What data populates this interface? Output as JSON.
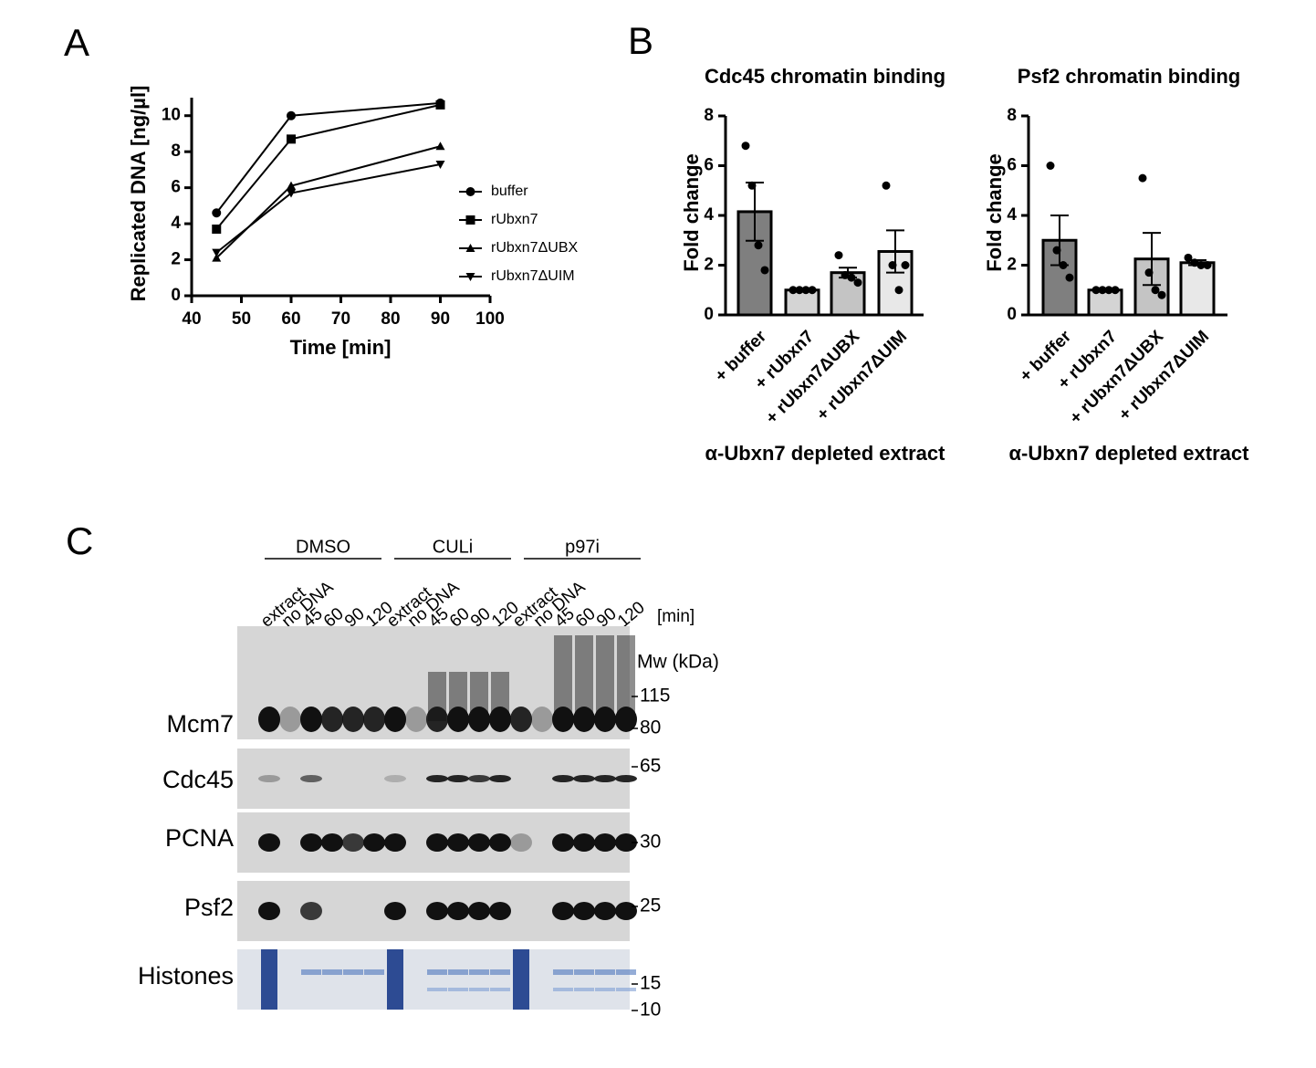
{
  "panel_labels": [
    "A",
    "B",
    "C"
  ],
  "chart_data": [
    {
      "type": "line",
      "ylabel": "Replicated DNA [ng/µl]",
      "xlabel": "Time [min]",
      "x": [
        45,
        60,
        90
      ],
      "xlim": [
        40,
        100
      ],
      "xticks": [
        40,
        50,
        60,
        70,
        80,
        90,
        100
      ],
      "ylim": [
        0,
        11
      ],
      "yticks": [
        0,
        2,
        4,
        6,
        8,
        10
      ],
      "series": [
        {
          "name": "buffer",
          "color": "#000000",
          "marker": "circle",
          "values": [
            4.6,
            10.0,
            10.7
          ]
        },
        {
          "name": "rUbxn7",
          "color": "#000000",
          "marker": "square",
          "values": [
            3.7,
            8.7,
            10.6
          ]
        },
        {
          "name": "rUbxn7ΔUBX",
          "color": "#000000",
          "marker": "triangle-up",
          "values": [
            2.1,
            6.1,
            8.3
          ]
        },
        {
          "name": "rUbxn7ΔUIM",
          "color": "#000000",
          "marker": "triangle-down",
          "values": [
            2.4,
            5.7,
            7.3
          ]
        }
      ]
    },
    {
      "type": "bar",
      "title": "Cdc45 chromatin binding",
      "ylabel": "Fold change",
      "xlabel": "α-Ubxn7 depleted extract",
      "categories": [
        "+ buffer",
        "+ rUbxn7",
        "+ rUbxn7ΔUBX",
        "+ rUbxn7ΔUIM"
      ],
      "values": [
        4.15,
        1.0,
        1.7,
        2.55
      ],
      "errors": [
        1.17,
        0,
        0.2,
        0.85
      ],
      "points": [
        [
          6.8,
          5.2,
          2.8,
          1.8
        ],
        [
          1.0,
          1.0,
          1.0,
          1.0
        ],
        [
          2.4,
          1.6,
          1.5,
          1.3
        ],
        [
          5.2,
          2.0,
          1.0,
          2.0
        ]
      ],
      "colors": [
        "#7f7f7f",
        "#d4d4d4",
        "#c4c4c4",
        "#e8e8e8"
      ],
      "ylim": [
        0,
        8
      ],
      "yticks": [
        0,
        2,
        4,
        6,
        8
      ]
    },
    {
      "type": "bar",
      "title": "Psf2 chromatin binding",
      "ylabel": "Fold change",
      "xlabel": "α-Ubxn7 depleted extract",
      "categories": [
        "+ buffer",
        "+ rUbxn7",
        "+ rUbxn7ΔUBX",
        "+ rUbxn7ΔUIM"
      ],
      "values": [
        3.0,
        1.0,
        2.25,
        2.1
      ],
      "errors": [
        1.0,
        0,
        1.05,
        0.1
      ],
      "points": [
        [
          6.0,
          2.6,
          2.0,
          1.5
        ],
        [
          1.0,
          1.0,
          1.0,
          1.0
        ],
        [
          5.5,
          1.7,
          1.0,
          0.8
        ],
        [
          2.3,
          2.1,
          2.0,
          2.0
        ]
      ],
      "colors": [
        "#7f7f7f",
        "#d4d4d4",
        "#c4c4c4",
        "#e8e8e8"
      ],
      "ylim": [
        0,
        8
      ],
      "yticks": [
        0,
        2,
        4,
        6,
        8
      ]
    }
  ],
  "blot": {
    "groups": [
      "DMSO",
      "CULi",
      "p97i"
    ],
    "lanes": [
      "extract",
      "no DNA",
      "45",
      "60",
      "90",
      "120"
    ],
    "time_unit": "[min]",
    "mw_label": "Mw (kDa)",
    "rows": [
      "Mcm7",
      "Cdc45",
      "PCNA",
      "Psf2",
      "Histones"
    ],
    "markers": [
      "115",
      "80",
      "65",
      "30",
      "25",
      "15",
      "10"
    ]
  }
}
